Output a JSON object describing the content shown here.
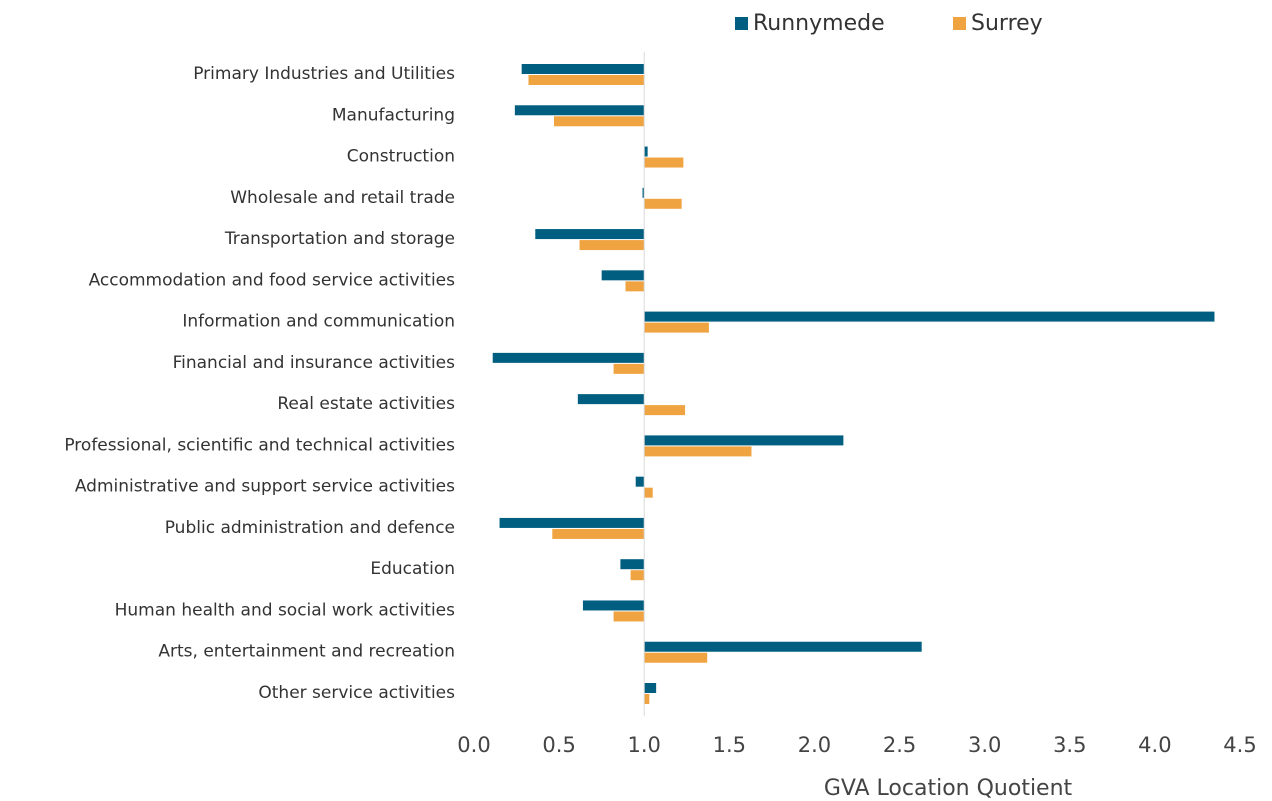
{
  "chart_data": {
    "type": "bar",
    "orientation": "horizontal",
    "x_label": "GVA Location Quotient",
    "categories": [
      "Primary Industries and Utilities",
      "Manufacturing",
      "Construction",
      "Wholesale and retail trade",
      "Transportation and storage",
      "Accommodation and food service activities",
      "Information and communication",
      "Financial and insurance activities",
      "Real estate activities",
      "Professional, scientific and technical activities",
      "Administrative and support service activities",
      "Public administration and defence",
      "Education",
      "Human health and social work activities",
      "Arts, entertainment and recreation",
      "Other service activities"
    ],
    "series": [
      {
        "name": "Runnymede",
        "color": "#005f80",
        "values": [
          0.28,
          0.24,
          1.02,
          0.99,
          0.36,
          0.75,
          4.35,
          0.11,
          0.61,
          2.17,
          0.95,
          0.15,
          0.86,
          0.64,
          2.63,
          1.07
        ]
      },
      {
        "name": "Surrey",
        "color": "#f0a441",
        "values": [
          0.32,
          0.47,
          1.23,
          1.22,
          0.62,
          0.89,
          1.38,
          0.82,
          1.24,
          1.63,
          1.05,
          0.46,
          0.92,
          0.82,
          1.37,
          1.03
        ]
      }
    ],
    "baseline": 1,
    "xlim": [
      0,
      4.5
    ],
    "xticks": [
      {
        "value": 0,
        "label": "0.0"
      },
      {
        "value": 0.5,
        "label": "0.5"
      },
      {
        "value": 1,
        "label": "1.0"
      },
      {
        "value": 1.5,
        "label": "1.5"
      },
      {
        "value": 2,
        "label": "2.0"
      },
      {
        "value": 2.5,
        "label": "2.5"
      },
      {
        "value": 3,
        "label": "3.0"
      },
      {
        "value": 3.5,
        "label": "3.5"
      },
      {
        "value": 4,
        "label": "4.0"
      },
      {
        "value": 4.5,
        "label": "4.5"
      }
    ],
    "legend": "top-right"
  }
}
